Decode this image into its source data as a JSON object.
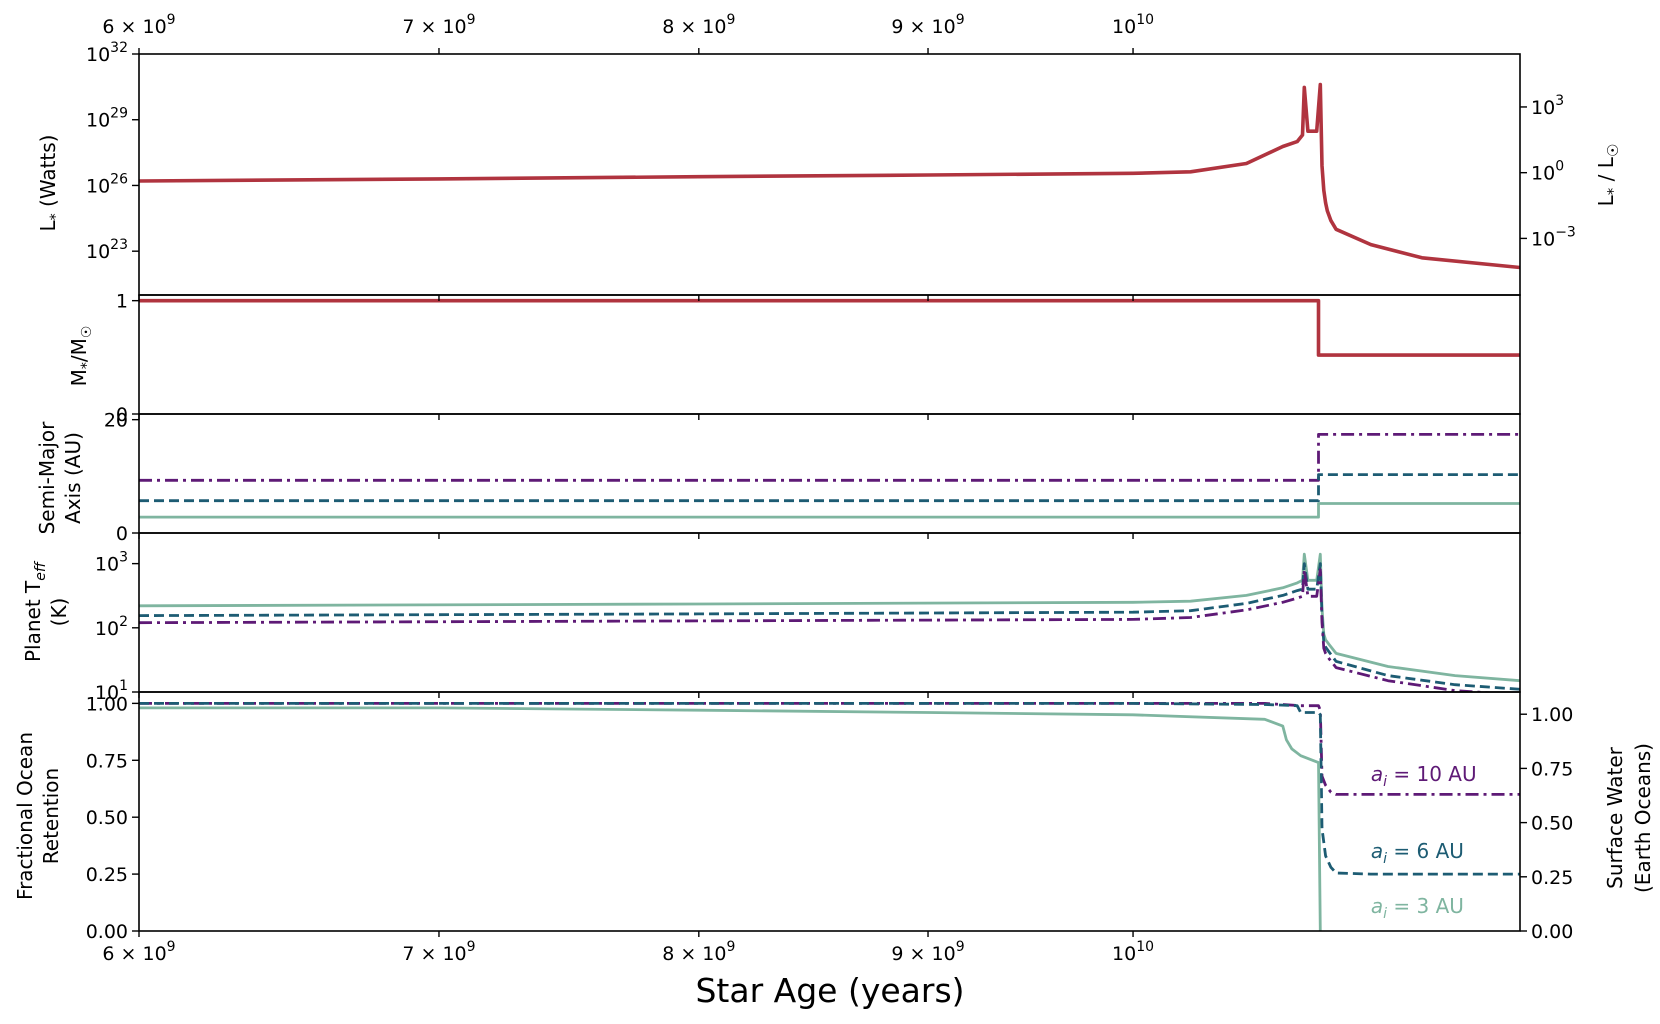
{
  "colors": {
    "luminosity": "#b0343f",
    "mass": "#b0343f",
    "a10": "#5e1a76",
    "a6": "#1d5c73",
    "a3": "#7fb5a0"
  },
  "x_axis": {
    "label": "Star Age (years)",
    "range": [
      6000000000.0,
      12200000000.0
    ],
    "scale": "log",
    "ticks": [
      {
        "value": 6000000000.0,
        "base": "6 × 10",
        "exp": "9"
      },
      {
        "value": 7000000000.0,
        "base": "7 × 10",
        "exp": "9"
      },
      {
        "value": 8000000000.0,
        "base": "8 × 10",
        "exp": "9"
      },
      {
        "value": 9000000000.0,
        "base": "9 × 10",
        "exp": "9"
      },
      {
        "value": 10000000000.0,
        "base": "10",
        "exp": "10"
      }
    ]
  },
  "chart_data": [
    {
      "type": "line",
      "panel": "luminosity",
      "ylabel": "L* (Watts)",
      "ylabel_right": "L* / L☉",
      "yscale": "log",
      "ylim": [
        1e+21,
        1e+32
      ],
      "yticks": [
        {
          "value": 1e+23,
          "exp": "23"
        },
        {
          "value": 1e+26,
          "exp": "26"
        },
        {
          "value": 1e+29,
          "exp": "29"
        },
        {
          "value": 1e+32,
          "exp": "32"
        }
      ],
      "yticks_right": [
        {
          "value": 3.828e+23,
          "exp": "−3"
        },
        {
          "value": 3.828e+26,
          "exp": "0"
        },
        {
          "value": 3.828e+29,
          "exp": "3"
        }
      ],
      "series": [
        {
          "color_key": "luminosity",
          "style": "solid",
          "x": [
            6000000000.0,
            7000000000.0,
            8000000000.0,
            9000000000.0,
            10000000000.0,
            10300000000.0,
            10600000000.0,
            10800000000.0,
            10880000000.0,
            10910000000.0,
            10920000000.0,
            10940000000.0,
            10990000000.0,
            11010000000.0,
            11020000000.0,
            11030000000.0,
            11040000000.0,
            11050000000.0,
            11070000000.0,
            11100000000.0,
            11300000000.0,
            11600000000.0,
            12200000000.0
          ],
          "y": [
            1.6e+26,
            2e+26,
            2.5e+26,
            3e+26,
            3.6e+26,
            4.2e+26,
            1e+27,
            6e+27,
            1e+28,
            2e+28,
            3e+30,
            3e+28,
            3e+28,
            4e+30,
            8e+26,
            6e+25,
            1.6e+25,
            7e+24,
            2.5e+24,
            1e+24,
            2e+23,
            5e+22,
            1.8e+22
          ]
        }
      ]
    },
    {
      "type": "line",
      "panel": "mass",
      "ylabel": "M*/M☉",
      "ylim": [
        0,
        1.05
      ],
      "yticks": [
        {
          "value": 0,
          "label": "0"
        },
        {
          "value": 1,
          "label": "1"
        }
      ],
      "series": [
        {
          "color_key": "mass",
          "style": "solid",
          "x": [
            6000000000.0,
            11000000000.0,
            11000000000.0,
            12200000000.0
          ],
          "y": [
            1.0,
            1.0,
            0.52,
            0.52
          ]
        }
      ]
    },
    {
      "type": "line",
      "panel": "semi_major_axis",
      "ylabel": "Semi-Major Axis (AU)",
      "ylim": [
        0,
        21
      ],
      "yticks": [
        {
          "value": 0,
          "label": "0"
        },
        {
          "value": 20,
          "label": "20"
        }
      ],
      "series": [
        {
          "color_key": "a10",
          "style": "dashdot",
          "x": [
            6000000000.0,
            11000000000.0,
            11000000000.0,
            12200000000.0
          ],
          "y": [
            9.3,
            9.3,
            17.4,
            17.4
          ]
        },
        {
          "color_key": "a6",
          "style": "dashed",
          "x": [
            6000000000.0,
            11000000000.0,
            11000000000.0,
            12200000000.0
          ],
          "y": [
            5.7,
            5.7,
            10.3,
            10.3
          ]
        },
        {
          "color_key": "a3",
          "style": "solid",
          "x": [
            6000000000.0,
            11000000000.0,
            11000000000.0,
            12200000000.0
          ],
          "y": [
            2.8,
            2.8,
            5.2,
            5.2
          ]
        }
      ]
    },
    {
      "type": "line",
      "panel": "teff",
      "ylabel": "Planet T_eff (K)",
      "yscale": "log",
      "ylim": [
        10,
        3000
      ],
      "yticks": [
        {
          "value": 10,
          "exp": "1"
        },
        {
          "value": 100,
          "exp": "2"
        },
        {
          "value": 1000,
          "exp": "3"
        }
      ],
      "series": [
        {
          "color_key": "a3",
          "style": "solid",
          "x": [
            6000000000.0,
            8000000000.0,
            10000000000.0,
            10300000000.0,
            10600000000.0,
            10800000000.0,
            10880000000.0,
            10910000000.0,
            10920000000.0,
            10940000000.0,
            10990000000.0,
            11010000000.0,
            11020000000.0,
            11030000000.0,
            11040000000.0,
            11060000000.0,
            11100000000.0,
            11400000000.0,
            11800000000.0,
            12200000000.0
          ],
          "y": [
            220,
            235,
            250,
            260,
            320,
            420,
            500,
            550,
            1400,
            550,
            550,
            1400,
            200,
            80,
            65,
            55,
            40,
            25,
            18,
            15
          ]
        },
        {
          "color_key": "a6",
          "style": "dashed",
          "x": [
            6000000000.0,
            8000000000.0,
            10000000000.0,
            10300000000.0,
            10600000000.0,
            10800000000.0,
            10880000000.0,
            10910000000.0,
            10920000000.0,
            10940000000.0,
            10990000000.0,
            11010000000.0,
            11020000000.0,
            11030000000.0,
            11040000000.0,
            11060000000.0,
            11100000000.0,
            11400000000.0,
            11800000000.0,
            12200000000.0
          ],
          "y": [
            155,
            165,
            175,
            185,
            240,
            320,
            380,
            400,
            1000,
            400,
            400,
            1000,
            150,
            60,
            50,
            42,
            30,
            18,
            13,
            11
          ]
        },
        {
          "color_key": "a10",
          "style": "dashdot",
          "x": [
            6000000000.0,
            8000000000.0,
            10000000000.0,
            10300000000.0,
            10600000000.0,
            10800000000.0,
            10880000000.0,
            10910000000.0,
            10920000000.0,
            10940000000.0,
            10990000000.0,
            11010000000.0,
            11020000000.0,
            11030000000.0,
            11040000000.0,
            11060000000.0,
            11100000000.0,
            11400000000.0,
            11800000000.0,
            12200000000.0
          ],
          "y": [
            120,
            128,
            135,
            145,
            190,
            250,
            290,
            310,
            800,
            310,
            310,
            800,
            120,
            48,
            40,
            33,
            24,
            15,
            10.5,
            9
          ]
        }
      ]
    },
    {
      "type": "line",
      "panel": "ocean",
      "ylabel": "Fractional Ocean Retention",
      "ylabel_right": "Surface Water (Earth Oceans)",
      "ylim": [
        0,
        1.05
      ],
      "yticks": [
        {
          "value": 0,
          "label": "0.00"
        },
        {
          "value": 0.25,
          "label": "0.25"
        },
        {
          "value": 0.5,
          "label": "0.50"
        },
        {
          "value": 0.75,
          "label": "0.75"
        },
        {
          "value": 1.0,
          "label": "1.00"
        }
      ],
      "yticks_right": [
        {
          "value": 0.0,
          "label": "0.00"
        },
        {
          "value": 0.2381,
          "label": "0.25"
        },
        {
          "value": 0.4762,
          "label": "0.50"
        },
        {
          "value": 0.7143,
          "label": "0.75"
        },
        {
          "value": 0.9524,
          "label": "1.00"
        }
      ],
      "series": [
        {
          "color_key": "a10",
          "style": "dashdot",
          "label": "10 AU",
          "x": [
            6000000000.0,
            10000000000.0,
            10700000000.0,
            10900000000.0,
            11000000000.0,
            11010000000.0,
            11020000000.0,
            11040000000.0,
            11070000000.0,
            11100000000.0,
            11300000000.0,
            12200000000.0
          ],
          "y": [
            1.0,
            1.0,
            1.0,
            0.99,
            0.99,
            0.97,
            0.68,
            0.64,
            0.61,
            0.6,
            0.6,
            0.6
          ]
        },
        {
          "color_key": "a6",
          "style": "dashed",
          "label": "6 AU",
          "x": [
            6000000000.0,
            10000000000.0,
            10700000000.0,
            10880000000.0,
            10900000000.0,
            11000000000.0,
            11010000000.0,
            11020000000.0,
            11040000000.0,
            11070000000.0,
            11100000000.0,
            11300000000.0,
            12200000000.0
          ],
          "y": [
            1.0,
            1.0,
            0.995,
            0.99,
            0.96,
            0.96,
            0.95,
            0.45,
            0.33,
            0.28,
            0.255,
            0.25,
            0.25
          ]
        },
        {
          "color_key": "a3",
          "style": "solid",
          "label": "3 AU",
          "x": [
            6000000000.0,
            7000000000.0,
            8000000000.0,
            9000000000.0,
            10000000000.0,
            10700000000.0,
            10800000000.0,
            10820000000.0,
            10850000000.0,
            10900000000.0,
            11000000000.0,
            11010000000.0
          ],
          "y": [
            0.98,
            0.98,
            0.97,
            0.96,
            0.95,
            0.93,
            0.9,
            0.84,
            0.8,
            0.77,
            0.74,
            0.0
          ]
        }
      ]
    }
  ],
  "annotations": [
    {
      "pre": "a",
      "sub": "i",
      "text": " = 10 AU",
      "color_key": "a10",
      "x": 11300000000.0,
      "y": 0.66
    },
    {
      "pre": "a",
      "sub": "i",
      "text": " = 6 AU",
      "color_key": "a6",
      "x": 11300000000.0,
      "y": 0.32
    },
    {
      "pre": "a",
      "sub": "i",
      "text": " = 3 AU",
      "color_key": "a3",
      "x": 11300000000.0,
      "y": 0.08
    }
  ]
}
